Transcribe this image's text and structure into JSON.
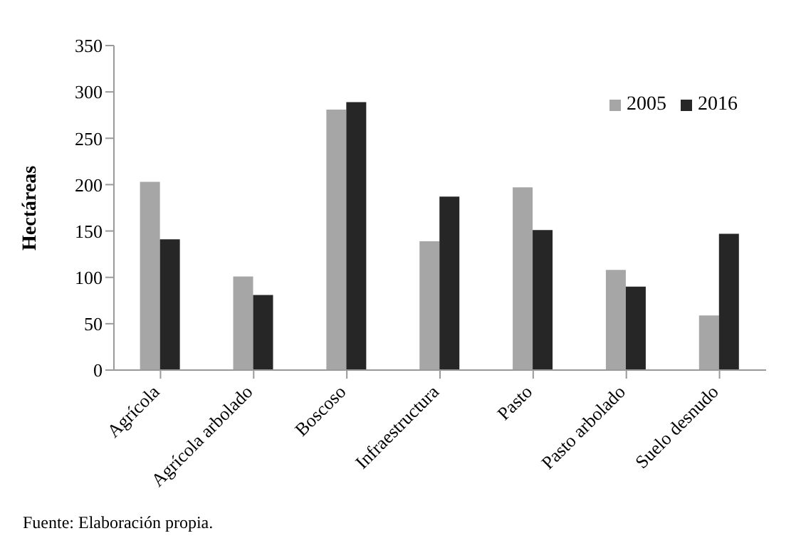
{
  "chart_data": {
    "type": "bar",
    "ylabel": "Hectáreas",
    "categories": [
      "Agrícola",
      "Agrícola arbolado",
      "Boscoso",
      "Infraestructura",
      "Pasto",
      "Pasto arbolado",
      "Suelo desnudo"
    ],
    "series": [
      {
        "name": "2005",
        "color": "#a6a6a6",
        "values": [
          203,
          101,
          281,
          139,
          197,
          108,
          59
        ]
      },
      {
        "name": "2016",
        "color": "#262626",
        "values": [
          141,
          81,
          289,
          187,
          151,
          90,
          147
        ]
      }
    ],
    "ylim": [
      0,
      350
    ],
    "yticks": [
      0,
      50,
      100,
      150,
      200,
      250,
      300,
      350
    ],
    "grid": false,
    "legend": "top right",
    "annotations": [
      "Fuente: Elaboración propia."
    ]
  }
}
